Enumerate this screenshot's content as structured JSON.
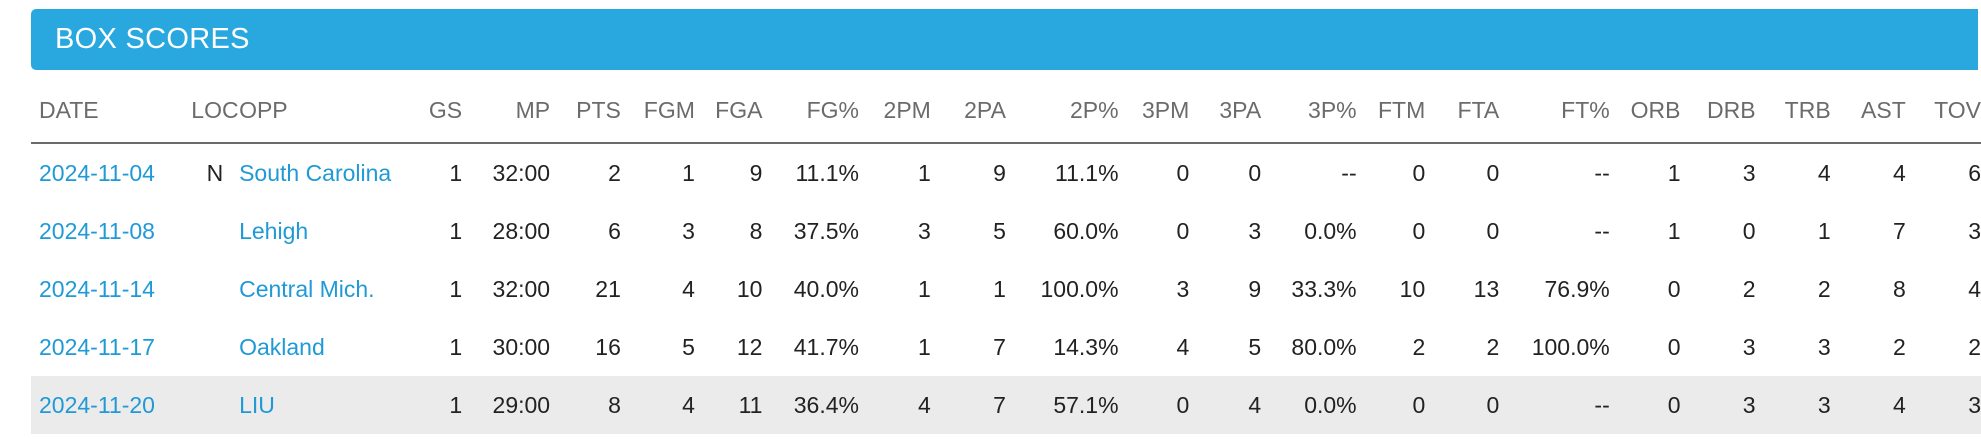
{
  "header": {
    "title": "BOX SCORES"
  },
  "colors": {
    "header_bg": "#29a8e0",
    "link": "#1f9ad6",
    "shaded_row": "#ebebeb"
  },
  "columns": [
    "DATE",
    "LOC",
    "OPP",
    "GS",
    "MP",
    "PTS",
    "FGM",
    "FGA",
    "FG%",
    "2PM",
    "2PA",
    "2P%",
    "3PM",
    "3PA",
    "3P%",
    "FTM",
    "FTA",
    "FT%",
    "ORB",
    "DRB",
    "TRB",
    "AST",
    "TOV"
  ],
  "rows": [
    [
      "2024-11-04",
      "N",
      "South Carolina",
      "1",
      "32:00",
      "2",
      "1",
      "9",
      "11.1%",
      "1",
      "9",
      "11.1%",
      "0",
      "0",
      "--",
      "0",
      "0",
      "--",
      "1",
      "3",
      "4",
      "4",
      "6"
    ],
    [
      "2024-11-08",
      "",
      "Lehigh",
      "1",
      "28:00",
      "6",
      "3",
      "8",
      "37.5%",
      "3",
      "5",
      "60.0%",
      "0",
      "3",
      "0.0%",
      "0",
      "0",
      "--",
      "1",
      "0",
      "1",
      "7",
      "3"
    ],
    [
      "2024-11-14",
      "",
      "Central Mich.",
      "1",
      "32:00",
      "21",
      "4",
      "10",
      "40.0%",
      "1",
      "1",
      "100.0%",
      "3",
      "9",
      "33.3%",
      "10",
      "13",
      "76.9%",
      "0",
      "2",
      "2",
      "8",
      "4"
    ],
    [
      "2024-11-17",
      "",
      "Oakland",
      "1",
      "30:00",
      "16",
      "5",
      "12",
      "41.7%",
      "1",
      "7",
      "14.3%",
      "4",
      "5",
      "80.0%",
      "2",
      "2",
      "100.0%",
      "0",
      "3",
      "3",
      "2",
      "2"
    ],
    [
      "2024-11-20",
      "",
      "LIU",
      "1",
      "29:00",
      "8",
      "4",
      "11",
      "36.4%",
      "4",
      "7",
      "57.1%",
      "0",
      "4",
      "0.0%",
      "0",
      "0",
      "--",
      "0",
      "3",
      "3",
      "4",
      "3"
    ]
  ],
  "shaded_row_index": 4
}
